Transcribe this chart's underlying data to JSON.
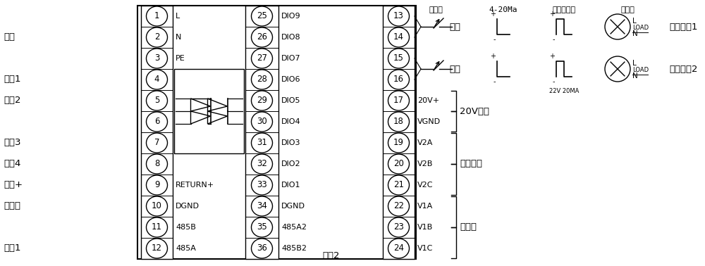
{
  "fig_width": 10.0,
  "fig_height": 3.78,
  "bg_color": "#ffffff",
  "line_color": "#000000",
  "left_pins": [
    1,
    2,
    3,
    4,
    5,
    6,
    7,
    8,
    9,
    10,
    11,
    12
  ],
  "mid_pins": [
    25,
    26,
    27,
    28,
    29,
    30,
    31,
    32,
    33,
    34,
    35,
    36
  ],
  "mid_labels": [
    "DIO9",
    "DIO8",
    "DIO7",
    "DIO6",
    "DIO5",
    "DIO4",
    "DIO3",
    "DIO2",
    "DIO1",
    "DGND",
    "485A2",
    "485B2"
  ],
  "right_pins": [
    13,
    14,
    15,
    16,
    17,
    18,
    19,
    20,
    21,
    22,
    23,
    24
  ],
  "right_labels_map": {
    "4": "20V+",
    "5": "VGND",
    "6": "V2A",
    "7": "V2B",
    "8": "V2C",
    "9": "V1A",
    "10": "V1B",
    "11": "V1C"
  }
}
